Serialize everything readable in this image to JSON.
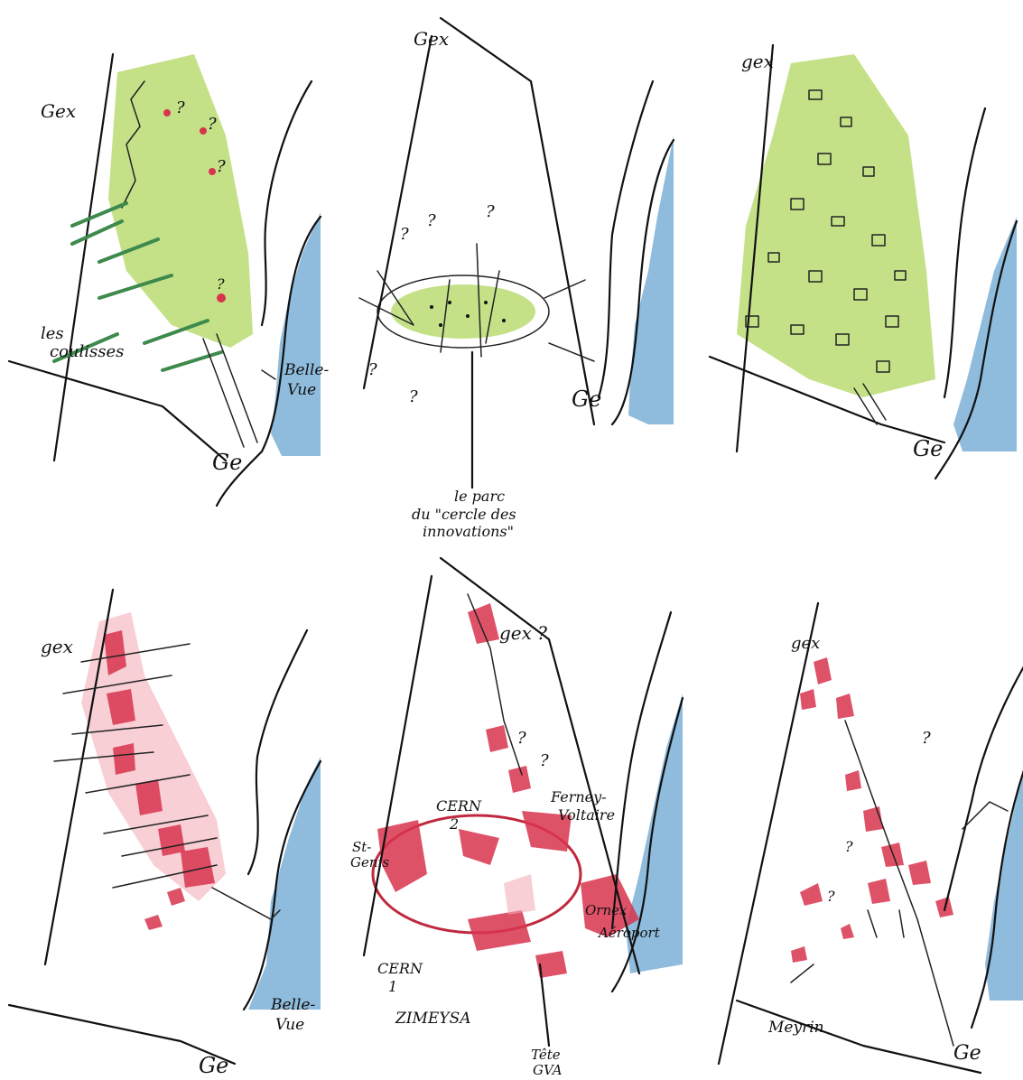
{
  "labels": {
    "gex": "Gex",
    "gex_alt": "gex",
    "gex_q": "gex ?",
    "ge": "Ge",
    "bellevue_1": "Belle-",
    "bellevue_2": "Vue",
    "coulisses_1": "les",
    "coulisses_2": "coulisses",
    "parc_1": "le parc",
    "parc_2": "du \"cercle des",
    "parc_3": "innovations\"",
    "cern2": "CERN",
    "cern2_num": "2",
    "cern1": "CERN",
    "cern1_num": "1",
    "ferney_1": "Ferney-",
    "ferney_2": "Voltaire",
    "stgenis_1": "St-",
    "stgenis_2": "Genis",
    "meyrin_ferney": "Meyrin",
    "ferney_airport": "Ferney",
    "airport_1": "Ornex",
    "airport_2": "Aéroport",
    "zimeysa": "ZIMEYSA",
    "tete_gva_1": "Tête",
    "tete_gva_2": "GVA",
    "meyrin": "Meyrin",
    "q": "?"
  },
  "colors": {
    "green": "#b5d96a",
    "green_dark": "#3d8a4c",
    "red": "#d8344e",
    "lake": "#8fbcdd",
    "ink": "#111111"
  }
}
